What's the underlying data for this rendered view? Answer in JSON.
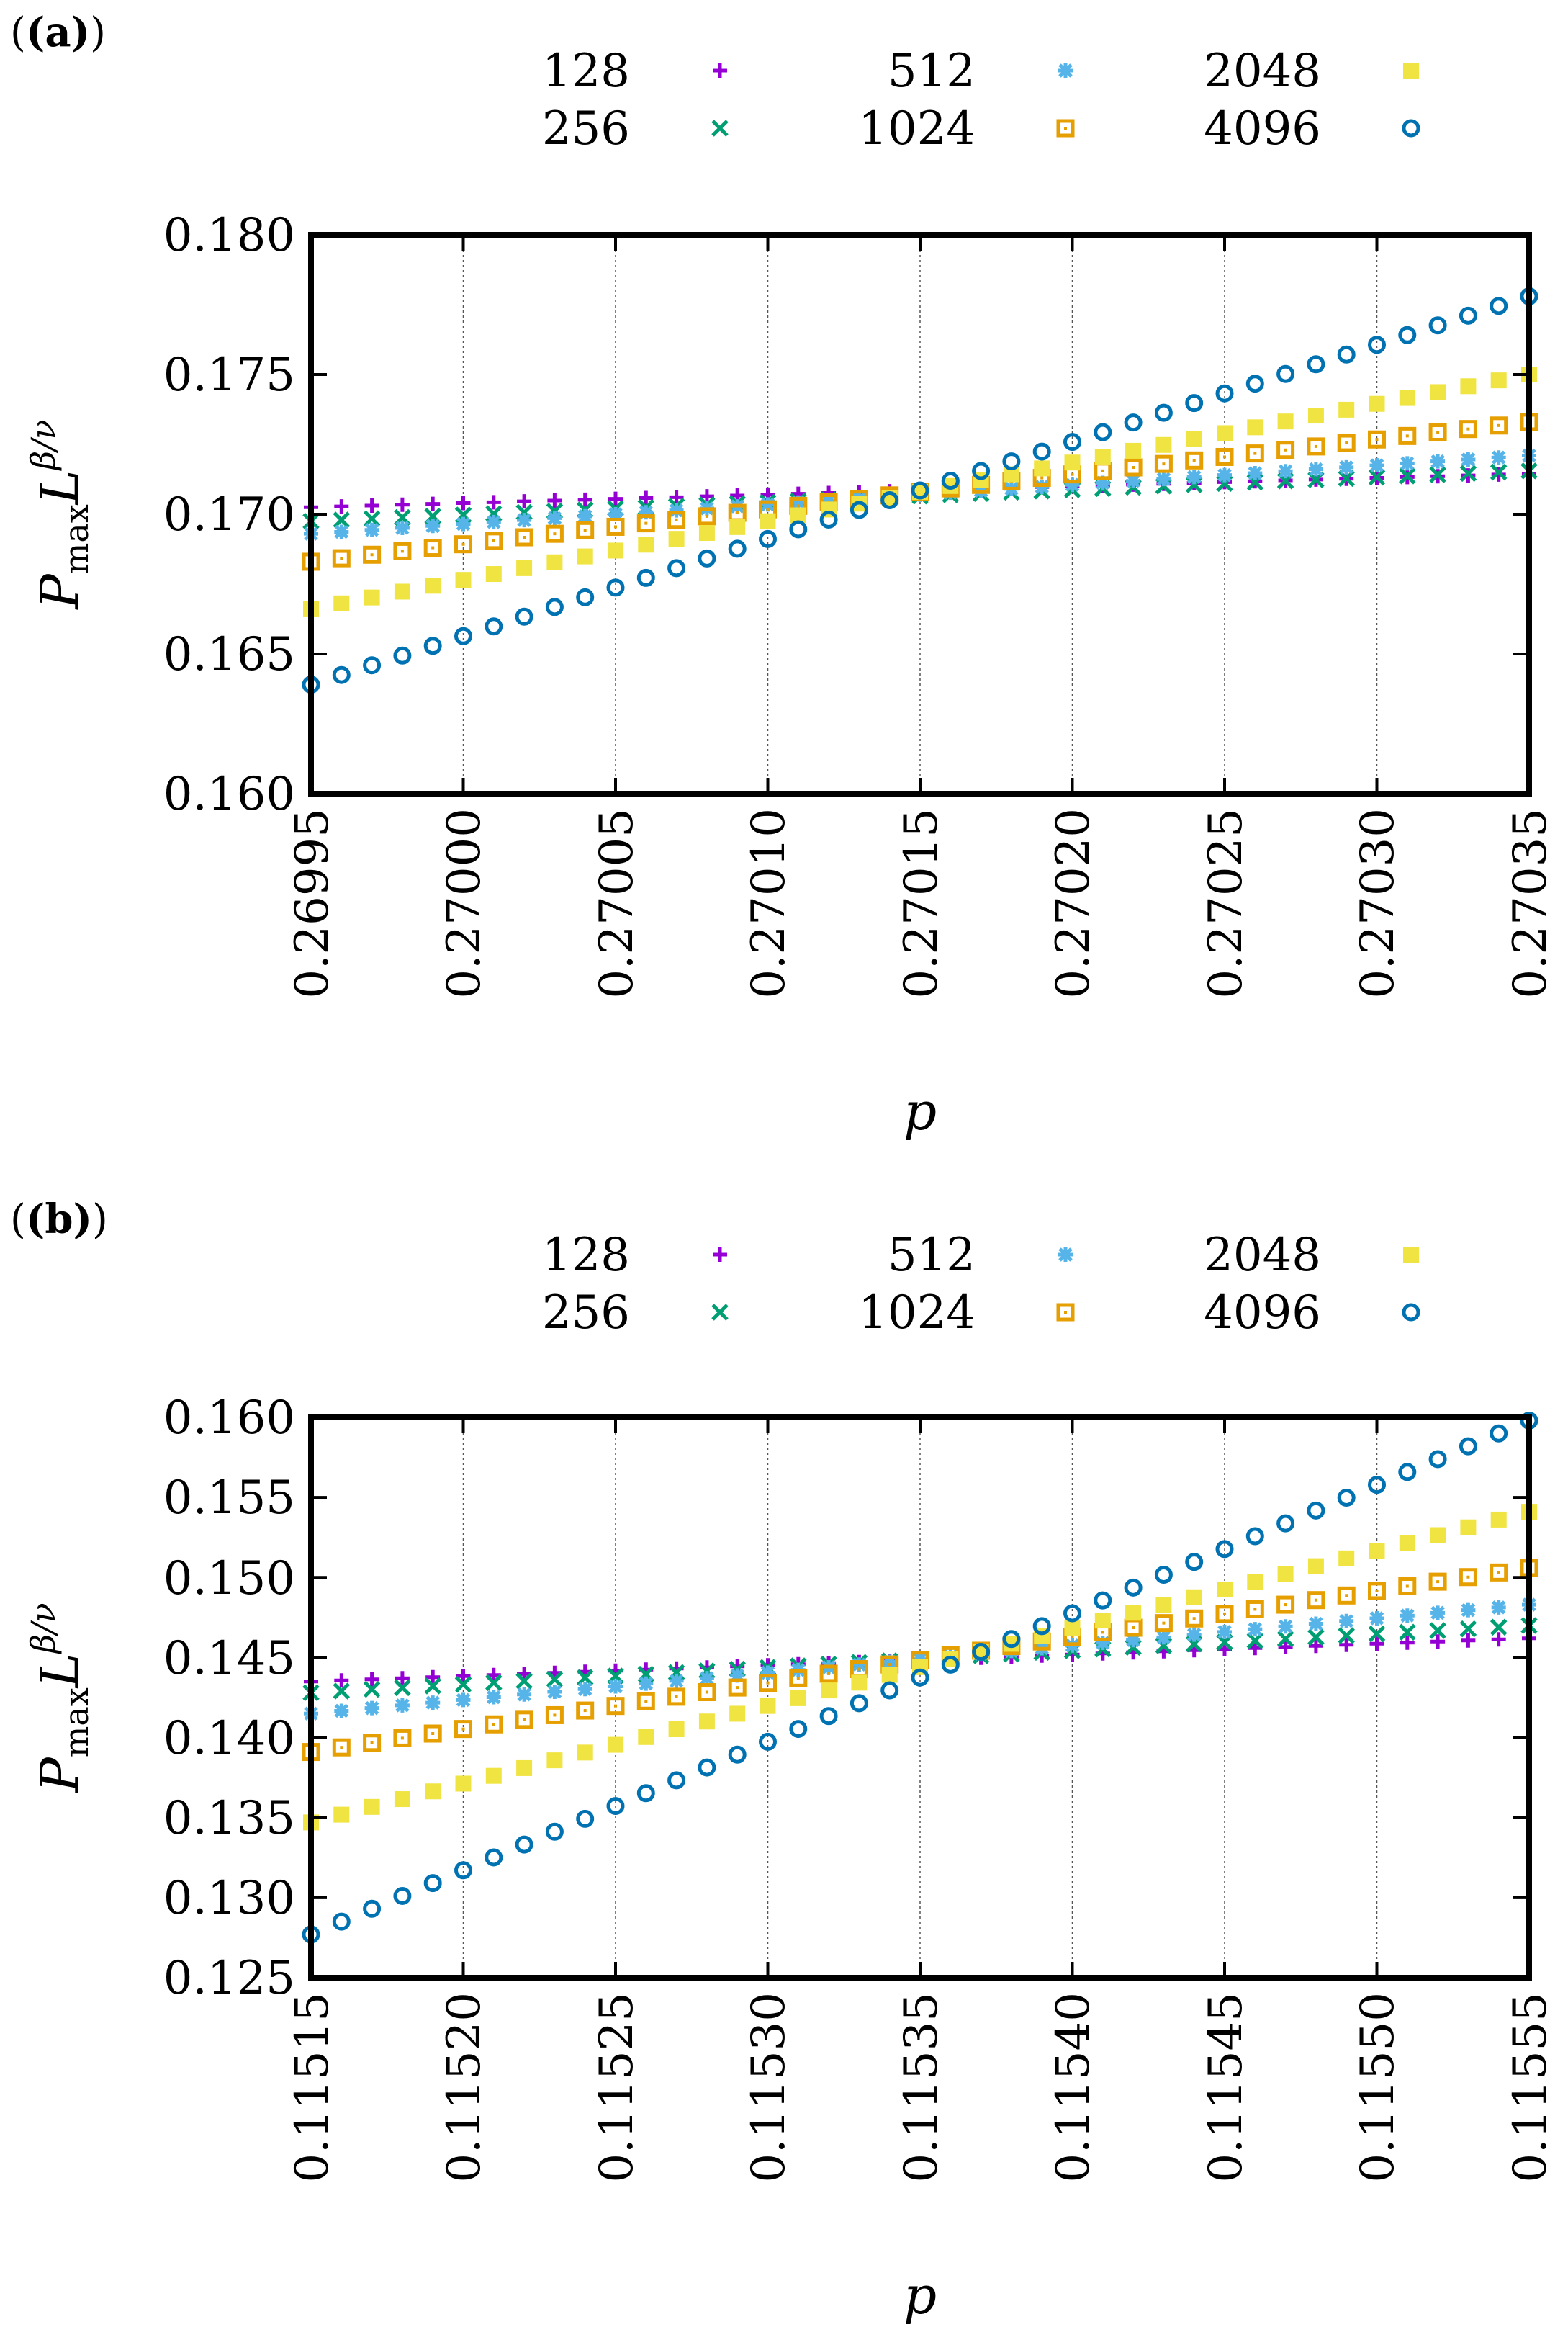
{
  "chart_data": [
    {
      "panel_label": "(a)",
      "type": "scatter",
      "title": "",
      "xlabel": "p",
      "ylabel": {
        "main": "P",
        "sub": "max",
        "L": "L",
        "exp": "β/ν"
      },
      "xlim": [
        0.26995,
        0.27035
      ],
      "ylim": [
        0.16,
        0.18
      ],
      "xticks": [
        "0.26995",
        "0.27000",
        "0.27005",
        "0.27010",
        "0.27015",
        "0.27020",
        "0.27025",
        "0.27030",
        "0.27035"
      ],
      "yticks": [
        "0.160",
        "0.165",
        "0.170",
        "0.175",
        "0.180"
      ],
      "grid": "vertical",
      "legend_position": "top",
      "x_start": 0.26995,
      "x_step": 1e-05,
      "series": [
        {
          "name": "128",
          "marker": "plus",
          "color": "#9400d3",
          "y0": 0.17025,
          "y1": 0.17145
        },
        {
          "name": "256",
          "marker": "cross",
          "color": "#009e73",
          "y0": 0.16975,
          "y1": 0.17155
        },
        {
          "name": "512",
          "marker": "star",
          "color": "#56b4e9",
          "y0": 0.1693,
          "y1": 0.1721
        },
        {
          "name": "1024",
          "marker": "box",
          "color": "#e69f00",
          "y0": 0.1683,
          "y1": 0.1733
        },
        {
          "name": "2048",
          "marker": "square",
          "color": "#f0e442",
          "y0": 0.1666,
          "y1": 0.175
        },
        {
          "name": "4096",
          "marker": "circle",
          "color": "#0072b2",
          "y0": 0.1639,
          "y1": 0.1778
        }
      ]
    },
    {
      "panel_label": "(b)",
      "type": "scatter",
      "title": "",
      "xlabel": "p",
      "ylabel": {
        "main": "P",
        "sub": "max",
        "L": "L",
        "exp": "β/ν"
      },
      "xlim": [
        0.11515,
        0.11555
      ],
      "ylim": [
        0.125,
        0.16
      ],
      "xticks": [
        "0.11515",
        "0.11520",
        "0.11525",
        "0.11530",
        "0.11535",
        "0.11540",
        "0.11545",
        "0.11550",
        "0.11555"
      ],
      "yticks": [
        "0.125",
        "0.130",
        "0.135",
        "0.140",
        "0.145",
        "0.150",
        "0.155",
        "0.160"
      ],
      "grid": "vertical",
      "legend_position": "top",
      "x_start": 0.11515,
      "x_step": 1e-05,
      "series": [
        {
          "name": "128",
          "marker": "plus",
          "color": "#9400d3",
          "y0": 0.1435,
          "y1": 0.1462
        },
        {
          "name": "256",
          "marker": "cross",
          "color": "#009e73",
          "y0": 0.1428,
          "y1": 0.147
        },
        {
          "name": "512",
          "marker": "star",
          "color": "#56b4e9",
          "y0": 0.1415,
          "y1": 0.1483
        },
        {
          "name": "1024",
          "marker": "box",
          "color": "#e69f00",
          "y0": 0.1391,
          "y1": 0.1506
        },
        {
          "name": "2048",
          "marker": "square",
          "color": "#f0e442",
          "y0": 0.1347,
          "y1": 0.1541
        },
        {
          "name": "4096",
          "marker": "circle",
          "color": "#0072b2",
          "y0": 0.1277,
          "y1": 0.1598
        }
      ]
    }
  ]
}
